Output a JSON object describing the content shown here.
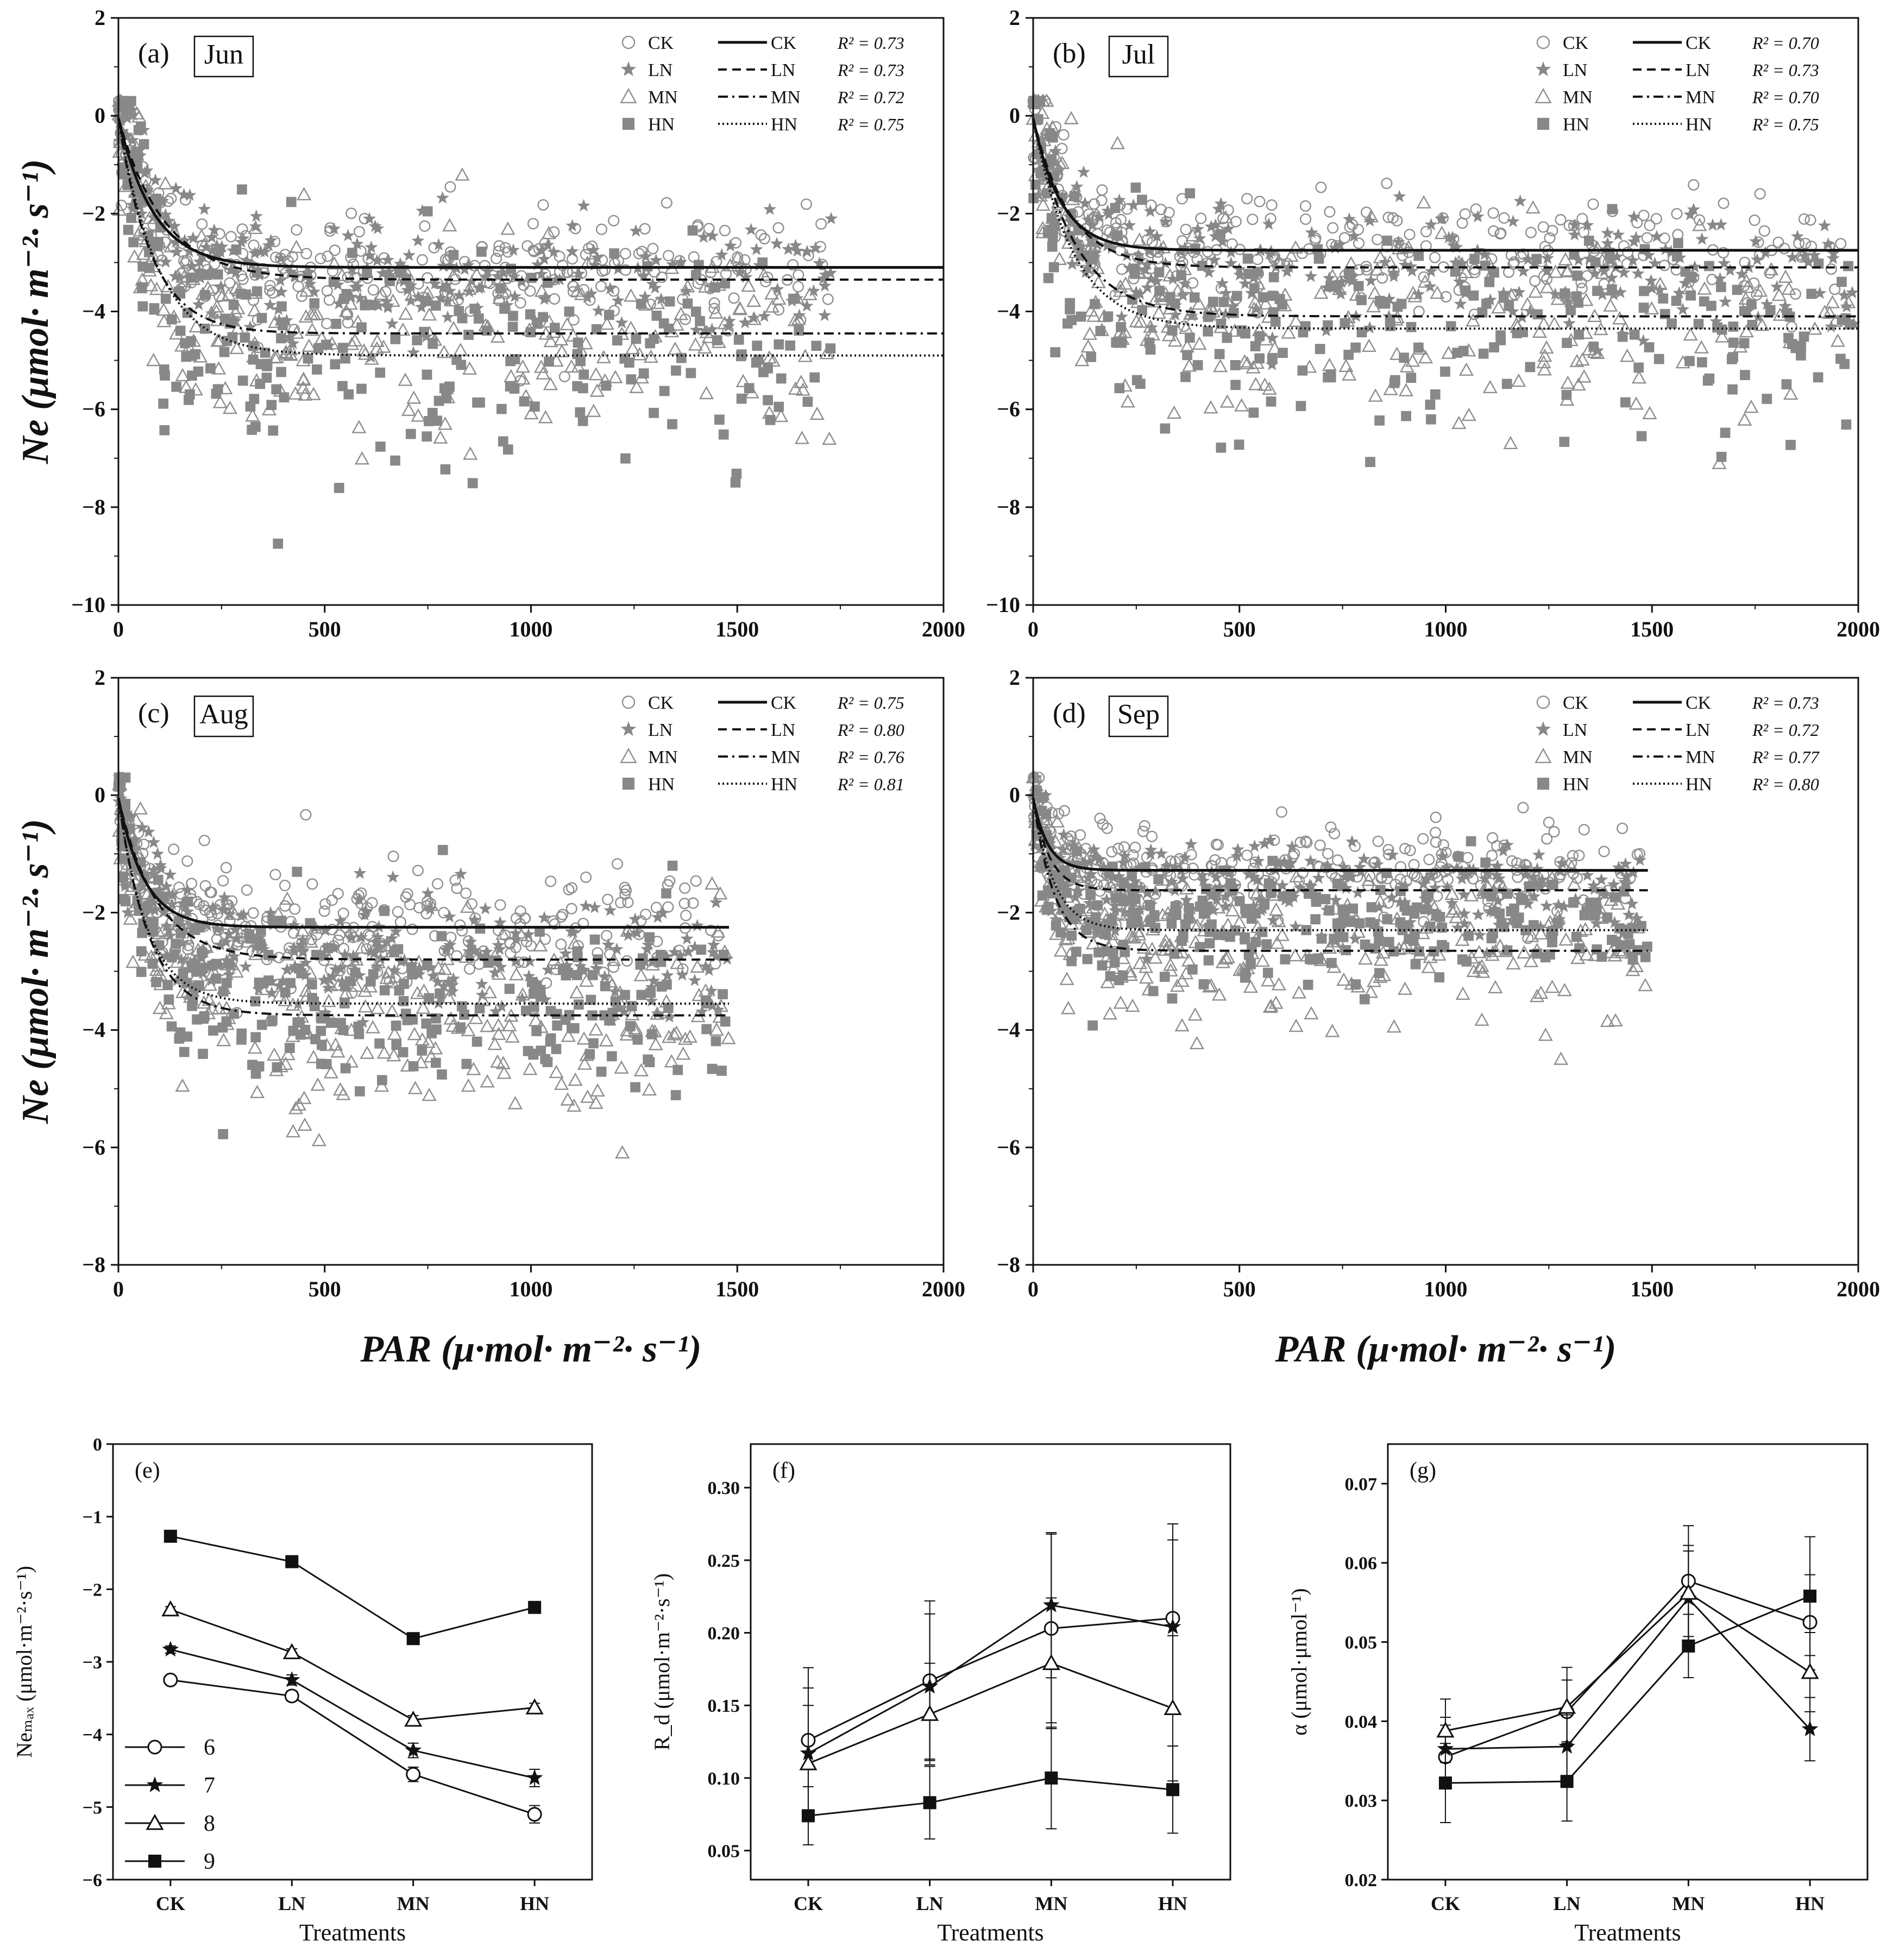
{
  "figure": {
    "colors": {
      "ink": "#111111",
      "scatter_gray": "#888888",
      "hollow_gray": "#8f8f8f",
      "background": "#ffffff"
    }
  },
  "chart_data": [
    {
      "id": "a",
      "type": "scatter",
      "panel_label": "(a)",
      "month": "Jun",
      "xlim": [
        0,
        2000
      ],
      "ylim": [
        -10,
        2
      ],
      "xticks": [
        "0",
        "500",
        "1000",
        "1500",
        "2000"
      ],
      "yticks": [
        "−10",
        "−8",
        "−6",
        "−4",
        "−2",
        "0",
        "2"
      ],
      "ylabel": "Ne (μmol· m⁻²· s⁻¹)",
      "xlabel": "",
      "legend_position": "top-right",
      "series": [
        {
          "name": "CK",
          "curve_style": "solid",
          "r2": "R² = 0.73",
          "curve": {
            "Rd": -0.05,
            "Nmax": -3.1,
            "alpha": 0.036
          },
          "scatter": {
            "xmax": 1730,
            "mean": -2.3,
            "sd": 0.65
          }
        },
        {
          "name": "LN",
          "curve_style": "dashed",
          "r2": "R² = 0.73",
          "curve": {
            "Rd": -0.05,
            "Nmax": -3.35,
            "alpha": 0.03
          },
          "scatter": {
            "xmax": 1730,
            "mean": -2.6,
            "sd": 0.7
          }
        },
        {
          "name": "MN",
          "curve_style": "dashdot",
          "r2": "R² = 0.72",
          "curve": {
            "Rd": -0.05,
            "Nmax": -4.45,
            "alpha": 0.055
          },
          "scatter": {
            "xmax": 1730,
            "mean": -3.6,
            "sd": 1.2
          }
        },
        {
          "name": "HN",
          "curve_style": "dotted",
          "r2": "R² = 0.75",
          "curve": {
            "Rd": -0.05,
            "Nmax": -4.9,
            "alpha": 0.05
          },
          "scatter": {
            "xmax": 1730,
            "mean": -4.1,
            "sd": 1.2
          }
        }
      ]
    },
    {
      "id": "b",
      "type": "scatter",
      "panel_label": "(b)",
      "month": "Jul",
      "xlim": [
        0,
        2000
      ],
      "ylim": [
        -10,
        2
      ],
      "xticks": [
        "0",
        "500",
        "1000",
        "1500",
        "2000"
      ],
      "yticks": [
        "−10",
        "−8",
        "−6",
        "−4",
        "−2",
        "0",
        "2"
      ],
      "ylabel": "",
      "xlabel": "",
      "legend_position": "top-right",
      "series": [
        {
          "name": "CK",
          "curve_style": "solid",
          "r2": "R² = 0.70",
          "curve": {
            "Rd": -0.05,
            "Nmax": -2.75,
            "alpha": 0.04
          },
          "scatter": {
            "xmax": 1990,
            "mean": -2.1,
            "sd": 0.7
          }
        },
        {
          "name": "LN",
          "curve_style": "dashed",
          "r2": "R² = 0.73",
          "curve": {
            "Rd": -0.05,
            "Nmax": -3.1,
            "alpha": 0.035
          },
          "scatter": {
            "xmax": 1990,
            "mean": -2.4,
            "sd": 0.75
          }
        },
        {
          "name": "MN",
          "curve_style": "dashdot",
          "r2": "R² = 0.70",
          "curve": {
            "Rd": -0.05,
            "Nmax": -4.1,
            "alpha": 0.04
          },
          "scatter": {
            "xmax": 1990,
            "mean": -3.4,
            "sd": 1.1
          }
        },
        {
          "name": "HN",
          "curve_style": "dotted",
          "r2": "R² = 0.75",
          "curve": {
            "Rd": -0.05,
            "Nmax": -4.35,
            "alpha": 0.045
          },
          "scatter": {
            "xmax": 1990,
            "mean": -3.8,
            "sd": 1.2
          }
        }
      ]
    },
    {
      "id": "c",
      "type": "scatter",
      "panel_label": "(c)",
      "month": "Aug",
      "xlim": [
        0,
        2000
      ],
      "ylim": [
        -8,
        2
      ],
      "xticks": [
        "0",
        "500",
        "1000",
        "1500",
        "2000"
      ],
      "yticks": [
        "−8",
        "−6",
        "−4",
        "−2",
        "0",
        "2"
      ],
      "ylabel": "Ne (μmol· m⁻²· s⁻¹)",
      "xlabel": "PAR (μ·mol· m⁻²· s⁻¹)",
      "legend_position": "top-right",
      "series": [
        {
          "name": "CK",
          "curve_style": "solid",
          "r2": "R² = 0.75",
          "curve": {
            "Rd": -0.05,
            "Nmax": -2.25,
            "alpha": 0.035
          },
          "scatter": {
            "xmax": 1480,
            "mean": -1.9,
            "sd": 0.6
          }
        },
        {
          "name": "LN",
          "curve_style": "dashed",
          "r2": "R² = 0.80",
          "curve": {
            "Rd": -0.05,
            "Nmax": -2.8,
            "alpha": 0.03
          },
          "scatter": {
            "xmax": 1480,
            "mean": -2.3,
            "sd": 0.6
          }
        },
        {
          "name": "MN",
          "curve_style": "dashdot",
          "r2": "R² = 0.76",
          "curve": {
            "Rd": -0.05,
            "Nmax": -3.75,
            "alpha": 0.05
          },
          "scatter": {
            "xmax": 1480,
            "mean": -3.3,
            "sd": 0.95
          }
        },
        {
          "name": "HN",
          "curve_style": "dotted",
          "r2": "R² = 0.81",
          "curve": {
            "Rd": -0.05,
            "Nmax": -3.55,
            "alpha": 0.05
          },
          "scatter": {
            "xmax": 1480,
            "mean": -3.2,
            "sd": 0.85
          }
        }
      ]
    },
    {
      "id": "d",
      "type": "scatter",
      "panel_label": "(d)",
      "month": "Sep",
      "xlim": [
        0,
        2000
      ],
      "ylim": [
        -8,
        2
      ],
      "xticks": [
        "0",
        "500",
        "1000",
        "1500",
        "2000"
      ],
      "yticks": [
        "−8",
        "−6",
        "−4",
        "−2",
        "0",
        "2"
      ],
      "ylabel": "",
      "xlabel": "PAR (μ·mol· m⁻²· s⁻¹)",
      "legend_position": "top-right",
      "series": [
        {
          "name": "CK",
          "curve_style": "solid",
          "r2": "R² = 0.73",
          "curve": {
            "Rd": -0.05,
            "Nmax": -1.28,
            "alpha": 0.035
          },
          "scatter": {
            "xmax": 1490,
            "mean": -1.15,
            "sd": 0.45
          }
        },
        {
          "name": "LN",
          "curve_style": "dashed",
          "r2": "R² = 0.72",
          "curve": {
            "Rd": -0.05,
            "Nmax": -1.62,
            "alpha": 0.04
          },
          "scatter": {
            "xmax": 1490,
            "mean": -1.45,
            "sd": 0.5
          }
        },
        {
          "name": "MN",
          "curve_style": "dashdot",
          "r2": "R² = 0.77",
          "curve": {
            "Rd": -0.05,
            "Nmax": -2.65,
            "alpha": 0.05
          },
          "scatter": {
            "xmax": 1490,
            "mean": -2.2,
            "sd": 0.7
          }
        },
        {
          "name": "HN",
          "curve_style": "dotted",
          "r2": "R² = 0.80",
          "curve": {
            "Rd": -0.05,
            "Nmax": -2.3,
            "alpha": 0.045
          },
          "scatter": {
            "xmax": 1490,
            "mean": -2.0,
            "sd": 0.6
          }
        }
      ]
    },
    {
      "id": "e",
      "type": "line",
      "panel_label": "(e)",
      "categories": [
        "CK",
        "LN",
        "MN",
        "HN"
      ],
      "ylim": [
        -6,
        0
      ],
      "yticks": [
        "−6",
        "−5",
        "−4",
        "−3",
        "−2",
        "−1",
        "0"
      ],
      "ylabel": "Neₘₐₓ (μmol·m⁻²·s⁻¹)",
      "xlabel": "Treatments",
      "legend_position": "bottom-left",
      "series": [
        {
          "name": "6",
          "marker": "circle-open",
          "values": [
            -3.25,
            -3.47,
            -4.55,
            -5.1
          ],
          "errors": [
            0.05,
            0.07,
            0.1,
            0.12
          ]
        },
        {
          "name": "7",
          "marker": "star",
          "values": [
            -2.83,
            -3.25,
            -4.22,
            -4.6
          ],
          "errors": [
            0.05,
            0.07,
            0.1,
            0.12
          ]
        },
        {
          "name": "8",
          "marker": "triangle-open",
          "values": [
            -2.28,
            -2.87,
            -3.8,
            -3.63
          ],
          "errors": [
            0.04,
            0.05,
            0.06,
            0.06
          ]
        },
        {
          "name": "9",
          "marker": "square-filled",
          "values": [
            -1.27,
            -1.62,
            -2.68,
            -2.25
          ],
          "errors": [
            0.03,
            0.03,
            0.05,
            0.05
          ]
        }
      ]
    },
    {
      "id": "f",
      "type": "line",
      "panel_label": "(f)",
      "categories": [
        "CK",
        "LN",
        "MN",
        "HN"
      ],
      "ylim": [
        0.03,
        0.33
      ],
      "yticks": [
        "0.05",
        "0.10",
        "0.15",
        "0.20",
        "0.25",
        "0.30"
      ],
      "yticks_values": [
        0.05,
        0.1,
        0.15,
        0.2,
        0.25,
        0.3
      ],
      "ylabel": "R_d (μmol·m⁻²·s⁻¹)",
      "xlabel": "Treatments",
      "series": [
        {
          "name": "6",
          "marker": "circle-open",
          "values": [
            0.126,
            0.167,
            0.203,
            0.21
          ],
          "errors": [
            0.05,
            0.055,
            0.065,
            0.065
          ]
        },
        {
          "name": "7",
          "marker": "star",
          "values": [
            0.117,
            0.163,
            0.219,
            0.204
          ],
          "errors": [
            0.045,
            0.05,
            0.05,
            0.06
          ]
        },
        {
          "name": "8",
          "marker": "triangle-open",
          "values": [
            0.11,
            0.144,
            0.179,
            0.148
          ],
          "errors": [
            0.04,
            0.035,
            0.045,
            0.05
          ]
        },
        {
          "name": "9",
          "marker": "square-filled",
          "values": [
            0.074,
            0.083,
            0.1,
            0.092
          ],
          "errors": [
            0.02,
            0.025,
            0.035,
            0.03
          ]
        }
      ]
    },
    {
      "id": "g",
      "type": "line",
      "panel_label": "(g)",
      "categories": [
        "CK",
        "LN",
        "MN",
        "HN"
      ],
      "ylim": [
        0.02,
        0.075
      ],
      "yticks": [
        "0.02",
        "0.03",
        "0.04",
        "0.05",
        "0.06",
        "0.07"
      ],
      "yticks_values": [
        0.02,
        0.03,
        0.04,
        0.05,
        0.06,
        0.07
      ],
      "ylabel": "α (μmol·μmol⁻¹)",
      "xlabel": "Treatments",
      "series": [
        {
          "name": "6",
          "marker": "circle-open",
          "values": [
            0.0355,
            0.0412,
            0.0577,
            0.0525
          ],
          "errors": [
            0.004,
            0.004,
            0.007,
            0.006
          ]
        },
        {
          "name": "7",
          "marker": "star",
          "values": [
            0.0365,
            0.0368,
            0.0555,
            0.039
          ],
          "errors": [
            0.004,
            0.004,
            0.006,
            0.004
          ]
        },
        {
          "name": "8",
          "marker": "triangle-open",
          "values": [
            0.0388,
            0.0418,
            0.0562,
            0.0462
          ],
          "errors": [
            0.004,
            0.005,
            0.006,
            0.005
          ]
        },
        {
          "name": "9",
          "marker": "square-filled",
          "values": [
            0.0322,
            0.0324,
            0.0495,
            0.0558
          ],
          "errors": [
            0.005,
            0.005,
            0.004,
            0.0075
          ]
        }
      ]
    }
  ]
}
